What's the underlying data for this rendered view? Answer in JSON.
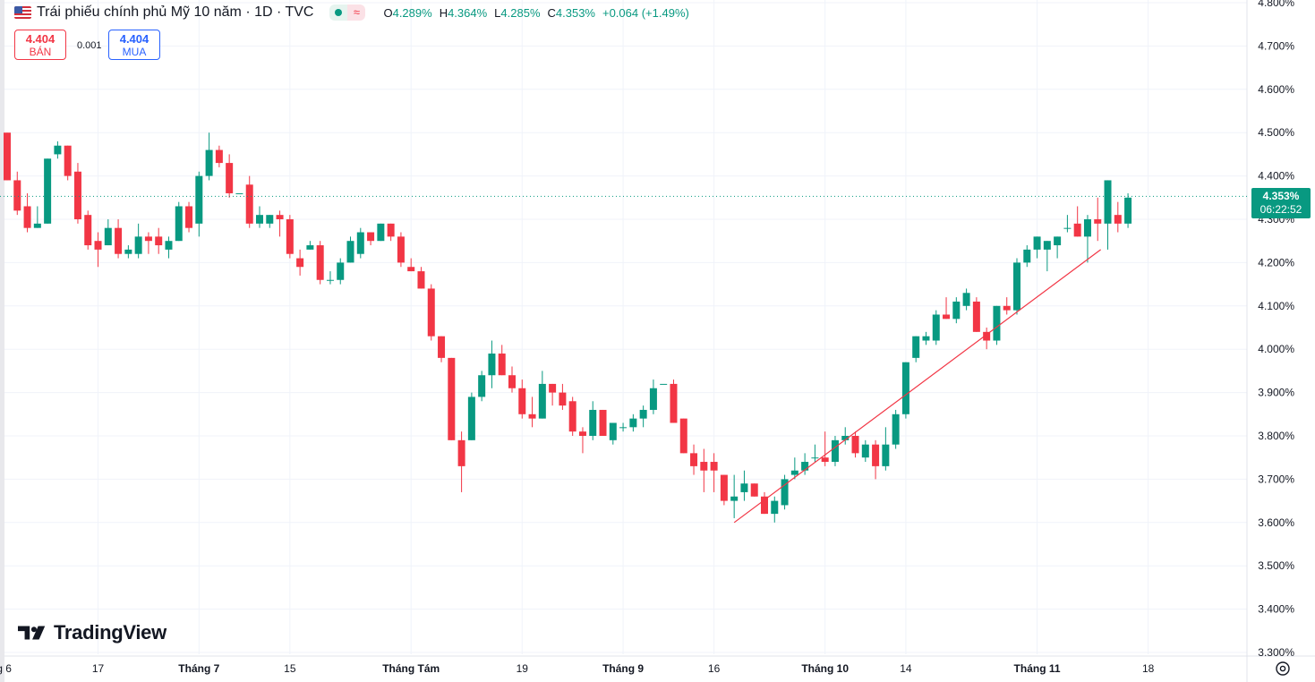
{
  "header": {
    "flag_icon": "us-flag-icon",
    "title": "Trái phiếu chính phủ Mỹ 10 năm · 1D · TVC",
    "ohlc": {
      "o_label": "O",
      "o": "4.289%",
      "h_label": "H",
      "h": "4.364%",
      "l_label": "L",
      "l": "4.285%",
      "c_label": "C",
      "c": "4.353%",
      "change": "+0.064 (+1.49%)"
    }
  },
  "trade": {
    "sell_price": "4.404",
    "sell_label": "BÁN",
    "spread": "0.001",
    "buy_price": "4.404",
    "buy_label": "MUA"
  },
  "last_price": {
    "price": "4.353%",
    "countdown": "06:22:52"
  },
  "logo": {
    "text": "TradingView"
  },
  "colors": {
    "up": "#089981",
    "down": "#f23645",
    "trendline": "#f23645"
  },
  "chart_data": {
    "type": "candlestick",
    "y_axis": {
      "min": 3.3,
      "max": 4.8,
      "position": "right",
      "ticks": [
        3.3,
        3.4,
        3.5,
        3.6,
        3.7,
        3.8,
        3.9,
        4.0,
        4.1,
        4.2,
        4.3,
        4.4,
        4.5,
        4.6,
        4.7,
        4.8
      ],
      "tick_labels": [
        "3.300%",
        "3.400%",
        "3.500%",
        "3.600%",
        "3.700%",
        "3.800%",
        "3.900%",
        "4.000%",
        "4.100%",
        "4.200%",
        "4.300%",
        "4.400%",
        "4.500%",
        "4.600%",
        "4.700%",
        "4.800%"
      ]
    },
    "x_axis": {
      "ticks": [
        {
          "label": "g 6",
          "index": -0.3
        },
        {
          "label": "17",
          "index": 9
        },
        {
          "label": "Tháng 7",
          "index": 19
        },
        {
          "label": "15",
          "index": 28
        },
        {
          "label": "Tháng Tám",
          "index": 40
        },
        {
          "label": "19",
          "index": 51
        },
        {
          "label": "Tháng 9",
          "index": 61
        },
        {
          "label": "16",
          "index": 70
        },
        {
          "label": "Tháng 10",
          "index": 81
        },
        {
          "label": "14",
          "index": 89
        },
        {
          "label": "Tháng 11",
          "index": 102
        },
        {
          "label": "18",
          "index": 113
        }
      ]
    },
    "grid": true,
    "last_price_line": 4.353,
    "candles": [
      {
        "o": 4.5,
        "h": 4.5,
        "l": 4.39,
        "c": 4.39
      },
      {
        "o": 4.39,
        "h": 4.41,
        "l": 4.31,
        "c": 4.32
      },
      {
        "o": 4.33,
        "h": 4.36,
        "l": 4.27,
        "c": 4.28
      },
      {
        "o": 4.28,
        "h": 4.33,
        "l": 4.28,
        "c": 4.29
      },
      {
        "o": 4.29,
        "h": 4.44,
        "l": 4.29,
        "c": 4.44
      },
      {
        "o": 4.45,
        "h": 4.48,
        "l": 4.44,
        "c": 4.47
      },
      {
        "o": 4.47,
        "h": 4.47,
        "l": 4.39,
        "c": 4.4
      },
      {
        "o": 4.41,
        "h": 4.43,
        "l": 4.29,
        "c": 4.3
      },
      {
        "o": 4.31,
        "h": 4.32,
        "l": 4.23,
        "c": 4.24
      },
      {
        "o": 4.25,
        "h": 4.27,
        "l": 4.19,
        "c": 4.23
      },
      {
        "o": 4.24,
        "h": 4.3,
        "l": 4.24,
        "c": 4.28
      },
      {
        "o": 4.28,
        "h": 4.3,
        "l": 4.21,
        "c": 4.22
      },
      {
        "o": 4.22,
        "h": 4.24,
        "l": 4.21,
        "c": 4.23
      },
      {
        "o": 4.22,
        "h": 4.29,
        "l": 4.21,
        "c": 4.26
      },
      {
        "o": 4.26,
        "h": 4.27,
        "l": 4.22,
        "c": 4.25
      },
      {
        "o": 4.26,
        "h": 4.28,
        "l": 4.22,
        "c": 4.24
      },
      {
        "o": 4.23,
        "h": 4.26,
        "l": 4.21,
        "c": 4.25
      },
      {
        "o": 4.25,
        "h": 4.34,
        "l": 4.25,
        "c": 4.33
      },
      {
        "o": 4.33,
        "h": 4.34,
        "l": 4.27,
        "c": 4.28
      },
      {
        "o": 4.29,
        "h": 4.41,
        "l": 4.26,
        "c": 4.4
      },
      {
        "o": 4.4,
        "h": 4.5,
        "l": 4.39,
        "c": 4.46
      },
      {
        "o": 4.46,
        "h": 4.47,
        "l": 4.42,
        "c": 4.43
      },
      {
        "o": 4.43,
        "h": 4.45,
        "l": 4.35,
        "c": 4.36
      },
      {
        "o": 4.36,
        "h": 4.36,
        "l": 4.36,
        "c": 4.36
      },
      {
        "o": 4.38,
        "h": 4.4,
        "l": 4.28,
        "c": 4.29
      },
      {
        "o": 4.29,
        "h": 4.33,
        "l": 4.28,
        "c": 4.31
      },
      {
        "o": 4.29,
        "h": 4.31,
        "l": 4.28,
        "c": 4.31
      },
      {
        "o": 4.31,
        "h": 4.32,
        "l": 4.26,
        "c": 4.3
      },
      {
        "o": 4.3,
        "h": 4.31,
        "l": 4.21,
        "c": 4.22
      },
      {
        "o": 4.21,
        "h": 4.23,
        "l": 4.17,
        "c": 4.19
      },
      {
        "o": 4.23,
        "h": 4.25,
        "l": 4.23,
        "c": 4.24
      },
      {
        "o": 4.24,
        "h": 4.25,
        "l": 4.15,
        "c": 4.16
      },
      {
        "o": 4.16,
        "h": 4.18,
        "l": 4.15,
        "c": 4.16
      },
      {
        "o": 4.16,
        "h": 4.21,
        "l": 4.15,
        "c": 4.2
      },
      {
        "o": 4.2,
        "h": 4.26,
        "l": 4.2,
        "c": 4.25
      },
      {
        "o": 4.22,
        "h": 4.28,
        "l": 4.21,
        "c": 4.27
      },
      {
        "o": 4.27,
        "h": 4.27,
        "l": 4.24,
        "c": 4.25
      },
      {
        "o": 4.25,
        "h": 4.29,
        "l": 4.25,
        "c": 4.29
      },
      {
        "o": 4.29,
        "h": 4.29,
        "l": 4.25,
        "c": 4.26
      },
      {
        "o": 4.26,
        "h": 4.27,
        "l": 4.19,
        "c": 4.2
      },
      {
        "o": 4.19,
        "h": 4.21,
        "l": 4.18,
        "c": 4.18
      },
      {
        "o": 4.18,
        "h": 4.19,
        "l": 4.14,
        "c": 4.14
      },
      {
        "o": 4.14,
        "h": 4.15,
        "l": 4.02,
        "c": 4.03
      },
      {
        "o": 4.03,
        "h": 4.03,
        "l": 3.97,
        "c": 3.98
      },
      {
        "o": 3.98,
        "h": 3.98,
        "l": 3.79,
        "c": 3.79
      },
      {
        "o": 3.79,
        "h": 3.81,
        "l": 3.67,
        "c": 3.73
      },
      {
        "o": 3.79,
        "h": 3.9,
        "l": 3.79,
        "c": 3.89
      },
      {
        "o": 3.89,
        "h": 3.95,
        "l": 3.88,
        "c": 3.94
      },
      {
        "o": 3.94,
        "h": 4.02,
        "l": 3.91,
        "c": 3.99
      },
      {
        "o": 3.99,
        "h": 4.01,
        "l": 3.94,
        "c": 3.94
      },
      {
        "o": 3.94,
        "h": 3.96,
        "l": 3.9,
        "c": 3.91
      },
      {
        "o": 3.91,
        "h": 3.93,
        "l": 3.84,
        "c": 3.85
      },
      {
        "o": 3.85,
        "h": 3.89,
        "l": 3.82,
        "c": 3.84
      },
      {
        "o": 3.84,
        "h": 3.95,
        "l": 3.84,
        "c": 3.92
      },
      {
        "o": 3.92,
        "h": 3.92,
        "l": 3.87,
        "c": 3.9
      },
      {
        "o": 3.9,
        "h": 3.92,
        "l": 3.86,
        "c": 3.87
      },
      {
        "o": 3.88,
        "h": 3.89,
        "l": 3.8,
        "c": 3.81
      },
      {
        "o": 3.81,
        "h": 3.82,
        "l": 3.76,
        "c": 3.8
      },
      {
        "o": 3.8,
        "h": 3.88,
        "l": 3.79,
        "c": 3.86
      },
      {
        "o": 3.86,
        "h": 3.86,
        "l": 3.8,
        "c": 3.8
      },
      {
        "o": 3.79,
        "h": 3.83,
        "l": 3.78,
        "c": 3.83
      },
      {
        "o": 3.82,
        "h": 3.83,
        "l": 3.81,
        "c": 3.82
      },
      {
        "o": 3.82,
        "h": 3.85,
        "l": 3.81,
        "c": 3.84
      },
      {
        "o": 3.84,
        "h": 3.87,
        "l": 3.82,
        "c": 3.86
      },
      {
        "o": 3.86,
        "h": 3.93,
        "l": 3.85,
        "c": 3.91
      },
      {
        "o": 3.92,
        "h": 3.92,
        "l": 3.92,
        "c": 3.92
      },
      {
        "o": 3.92,
        "h": 3.93,
        "l": 3.83,
        "c": 3.83
      },
      {
        "o": 3.84,
        "h": 3.84,
        "l": 3.76,
        "c": 3.76
      },
      {
        "o": 3.76,
        "h": 3.78,
        "l": 3.71,
        "c": 3.73
      },
      {
        "o": 3.74,
        "h": 3.77,
        "l": 3.67,
        "c": 3.72
      },
      {
        "o": 3.74,
        "h": 3.76,
        "l": 3.67,
        "c": 3.72
      },
      {
        "o": 3.71,
        "h": 3.71,
        "l": 3.64,
        "c": 3.65
      },
      {
        "o": 3.65,
        "h": 3.71,
        "l": 3.61,
        "c": 3.66
      },
      {
        "o": 3.67,
        "h": 3.72,
        "l": 3.65,
        "c": 3.69
      },
      {
        "o": 3.69,
        "h": 3.69,
        "l": 3.66,
        "c": 3.66
      },
      {
        "o": 3.66,
        "h": 3.67,
        "l": 3.62,
        "c": 3.62
      },
      {
        "o": 3.62,
        "h": 3.66,
        "l": 3.6,
        "c": 3.65
      },
      {
        "o": 3.64,
        "h": 3.71,
        "l": 3.63,
        "c": 3.7
      },
      {
        "o": 3.71,
        "h": 3.75,
        "l": 3.7,
        "c": 3.72
      },
      {
        "o": 3.72,
        "h": 3.76,
        "l": 3.71,
        "c": 3.74
      },
      {
        "o": 3.75,
        "h": 3.78,
        "l": 3.74,
        "c": 3.75
      },
      {
        "o": 3.75,
        "h": 3.81,
        "l": 3.73,
        "c": 3.74
      },
      {
        "o": 3.74,
        "h": 3.8,
        "l": 3.73,
        "c": 3.79
      },
      {
        "o": 3.79,
        "h": 3.82,
        "l": 3.78,
        "c": 3.8
      },
      {
        "o": 3.8,
        "h": 3.81,
        "l": 3.75,
        "c": 3.76
      },
      {
        "o": 3.75,
        "h": 3.79,
        "l": 3.74,
        "c": 3.78
      },
      {
        "o": 3.78,
        "h": 3.79,
        "l": 3.7,
        "c": 3.73
      },
      {
        "o": 3.73,
        "h": 3.82,
        "l": 3.72,
        "c": 3.78
      },
      {
        "o": 3.78,
        "h": 3.86,
        "l": 3.77,
        "c": 3.85
      },
      {
        "o": 3.85,
        "h": 3.97,
        "l": 3.84,
        "c": 3.97
      },
      {
        "o": 3.98,
        "h": 4.03,
        "l": 3.97,
        "c": 4.03
      },
      {
        "o": 4.02,
        "h": 4.04,
        "l": 4.01,
        "c": 4.03
      },
      {
        "o": 4.02,
        "h": 4.09,
        "l": 4.01,
        "c": 4.08
      },
      {
        "o": 4.08,
        "h": 4.12,
        "l": 4.07,
        "c": 4.07
      },
      {
        "o": 4.07,
        "h": 4.12,
        "l": 4.06,
        "c": 4.11
      },
      {
        "o": 4.1,
        "h": 4.14,
        "l": 4.09,
        "c": 4.13
      },
      {
        "o": 4.11,
        "h": 4.12,
        "l": 4.04,
        "c": 4.04
      },
      {
        "o": 4.04,
        "h": 4.05,
        "l": 4.0,
        "c": 4.02
      },
      {
        "o": 4.02,
        "h": 4.1,
        "l": 4.01,
        "c": 4.1
      },
      {
        "o": 4.1,
        "h": 4.12,
        "l": 4.08,
        "c": 4.09
      },
      {
        "o": 4.09,
        "h": 4.21,
        "l": 4.08,
        "c": 4.2
      },
      {
        "o": 4.2,
        "h": 4.24,
        "l": 4.19,
        "c": 4.23
      },
      {
        "o": 4.23,
        "h": 4.26,
        "l": 4.21,
        "c": 4.26
      },
      {
        "o": 4.23,
        "h": 4.25,
        "l": 4.18,
        "c": 4.25
      },
      {
        "o": 4.24,
        "h": 4.26,
        "l": 4.21,
        "c": 4.26
      },
      {
        "o": 4.28,
        "h": 4.31,
        "l": 4.27,
        "c": 4.28
      },
      {
        "o": 4.29,
        "h": 4.33,
        "l": 4.26,
        "c": 4.26
      },
      {
        "o": 4.26,
        "h": 4.31,
        "l": 4.2,
        "c": 4.3
      },
      {
        "o": 4.3,
        "h": 4.35,
        "l": 4.25,
        "c": 4.29
      },
      {
        "o": 4.29,
        "h": 4.39,
        "l": 4.23,
        "c": 4.39
      },
      {
        "o": 4.31,
        "h": 4.34,
        "l": 4.27,
        "c": 4.29
      },
      {
        "o": 4.29,
        "h": 4.36,
        "l": 4.28,
        "c": 4.35
      }
    ],
    "annotations": [
      {
        "type": "trendline",
        "from": {
          "index": 72,
          "value": 3.6
        },
        "to": {
          "index": 108.3,
          "value": 4.23
        }
      }
    ]
  }
}
